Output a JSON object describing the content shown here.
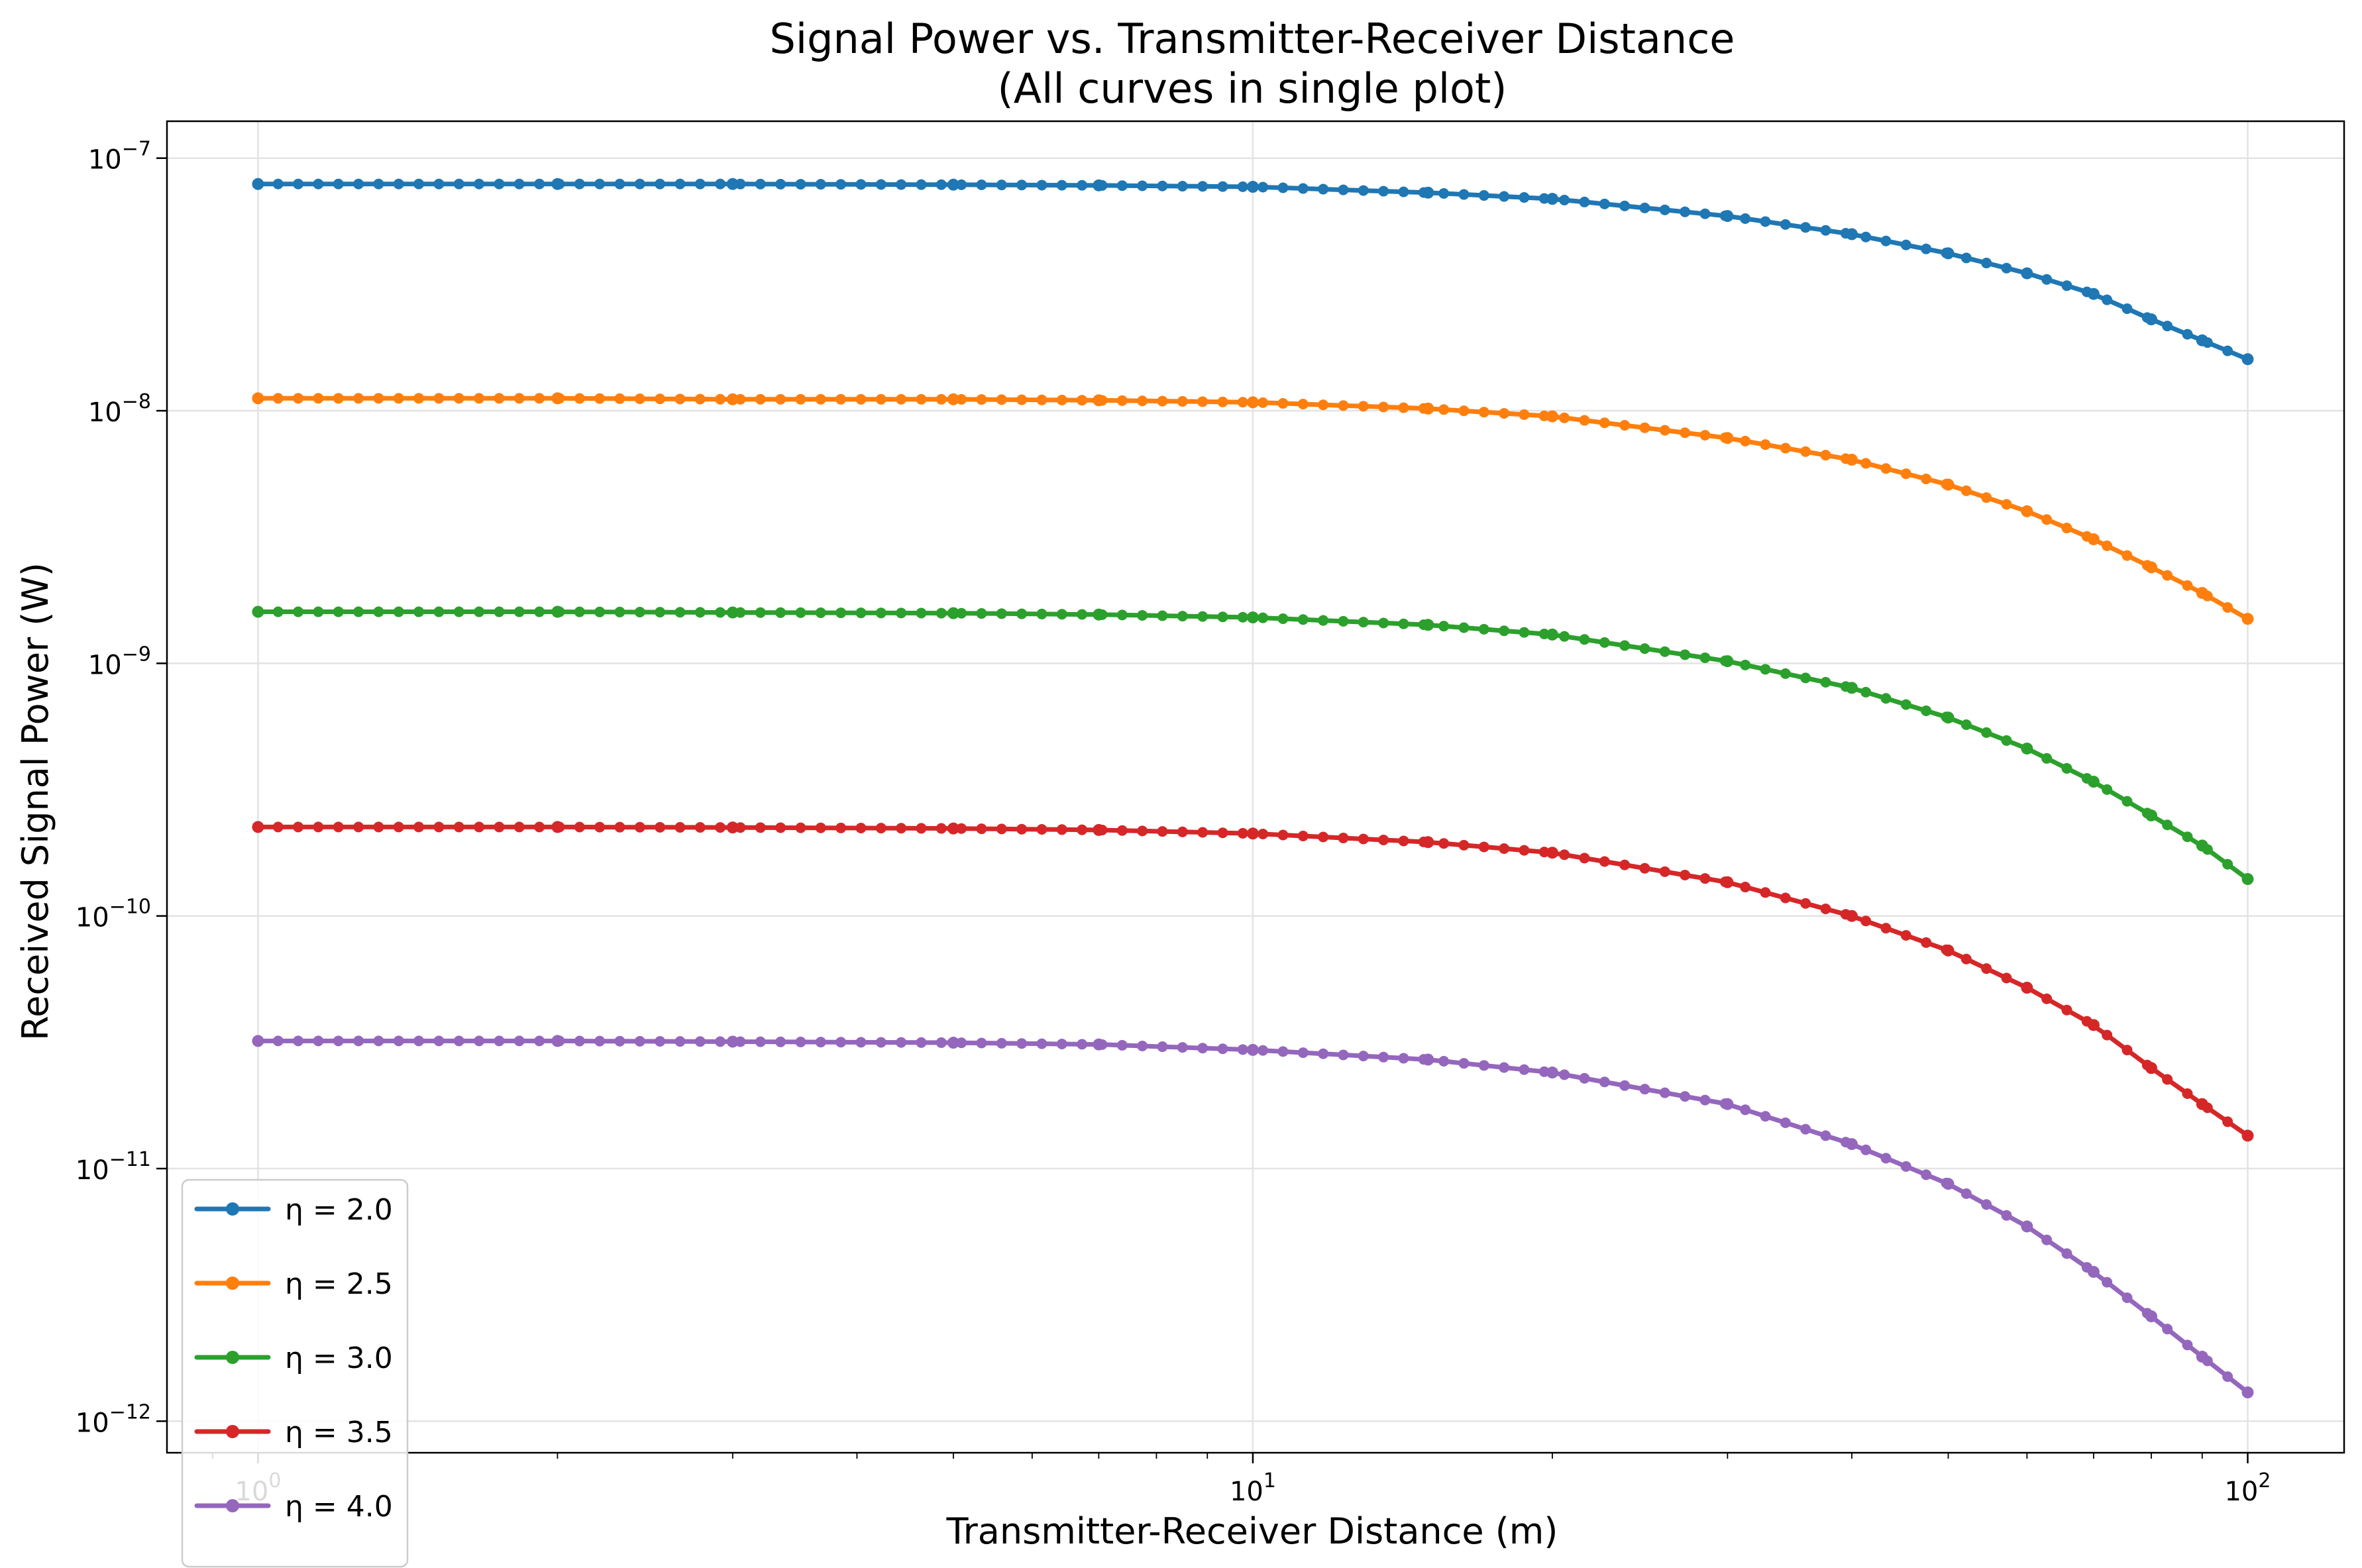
{
  "chart_data": {
    "type": "line",
    "title": "Signal Power vs. Transmitter-Receiver Distance",
    "subtitle": "(All curves in single plot)",
    "xlabel": "Transmitter-Receiver Distance (m)",
    "ylabel": "Received Signal Power (W)",
    "xscale": "log",
    "yscale": "log",
    "xlim": [
      0.81,
      125
    ],
    "ylim": [
      7.5e-13,
      1.4e-07
    ],
    "grid": true,
    "legend_position": "lower-left",
    "x_ticks": [
      {
        "value": 1,
        "base": "10",
        "exp": "0"
      },
      {
        "value": 10,
        "base": "10",
        "exp": "1"
      },
      {
        "value": 100,
        "base": "10",
        "exp": "2"
      }
    ],
    "y_ticks": [
      {
        "value": 1e-07,
        "base": "10",
        "exp": "−7"
      },
      {
        "value": 1e-08,
        "base": "10",
        "exp": "−8"
      },
      {
        "value": 1e-09,
        "base": "10",
        "exp": "−9"
      },
      {
        "value": 1e-10,
        "base": "10",
        "exp": "−10"
      },
      {
        "value": 1e-11,
        "base": "10",
        "exp": "−11"
      },
      {
        "value": 1e-12,
        "base": "10",
        "exp": "−12"
      }
    ],
    "x_points": [
      1,
      2,
      3,
      5,
      7,
      10,
      15,
      20,
      30,
      40,
      50,
      60,
      70,
      80,
      90,
      100
    ],
    "series": [
      {
        "name": "η = 2.0",
        "color": "#1f77b4",
        "marker": "circle",
        "values": [
          7.9e-08,
          7.9e-08,
          7.9e-08,
          7.85e-08,
          7.8e-08,
          7.7e-08,
          7.3e-08,
          6.9e-08,
          5.9e-08,
          5e-08,
          4.2e-08,
          3.5e-08,
          2.9e-08,
          2.3e-08,
          1.9e-08,
          1.6e-08
        ]
      },
      {
        "name": "η = 2.5",
        "color": "#ff7f0e",
        "marker": "circle",
        "values": [
          1.12e-08,
          1.12e-08,
          1.11e-08,
          1.11e-08,
          1.1e-08,
          1.08e-08,
          1.02e-08,
          9.5e-09,
          7.8e-09,
          6.4e-09,
          5.1e-09,
          4e-09,
          3.1e-09,
          2.4e-09,
          1.9e-09,
          1.5e-09
        ]
      },
      {
        "name": "η = 3.0",
        "color": "#2ca02c",
        "marker": "circle",
        "values": [
          1.6e-09,
          1.6e-09,
          1.59e-09,
          1.58e-09,
          1.56e-09,
          1.52e-09,
          1.42e-09,
          1.3e-09,
          1.02e-09,
          8e-10,
          6.1e-10,
          4.6e-10,
          3.4e-10,
          2.5e-10,
          1.9e-10,
          1.4e-10
        ]
      },
      {
        "name": "η = 3.5",
        "color": "#d62728",
        "marker": "circle",
        "values": [
          2.25e-10,
          2.25e-10,
          2.24e-10,
          2.22e-10,
          2.19e-10,
          2.12e-10,
          1.96e-10,
          1.78e-10,
          1.36e-10,
          1e-10,
          7.3e-11,
          5.2e-11,
          3.7e-11,
          2.5e-11,
          1.8e-11,
          1.35e-11
        ]
      },
      {
        "name": "η = 4.0",
        "color": "#9467bd",
        "marker": "circle",
        "values": [
          3.2e-11,
          3.2e-11,
          3.18e-11,
          3.15e-11,
          3.1e-11,
          2.95e-11,
          2.7e-11,
          2.4e-11,
          1.8e-11,
          1.25e-11,
          8.7e-12,
          5.9e-12,
          3.9e-12,
          2.6e-12,
          1.8e-12,
          1.3e-12
        ]
      }
    ]
  }
}
